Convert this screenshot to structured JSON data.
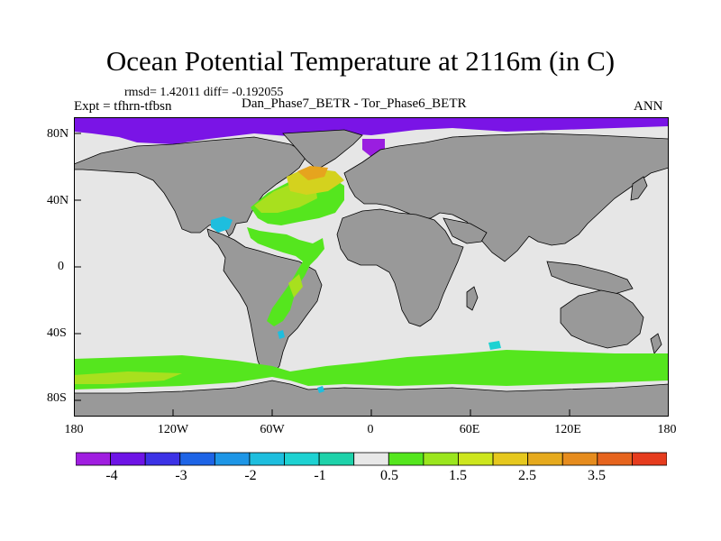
{
  "title": "Ocean Potential Temperature at 2116m (in C)",
  "stats": "rmsd= 1.42011 diff= -0.192055",
  "experiment": "Expt = tfhrn-tfbsn",
  "cases": "Dan_Phase7_BETR - Tor_Phase6_BETR",
  "season": "ANN",
  "lat_labels": [
    "80N",
    "40N",
    "0",
    "40S",
    "80S"
  ],
  "lon_labels": [
    "180",
    "120W",
    "60W",
    "0",
    "60E",
    "120E",
    "180"
  ],
  "colors": {
    "land": "#999999",
    "no_change": "#e6e6e6",
    "coast": "#000000"
  },
  "colorbar": {
    "colors": [
      "#a01ee0",
      "#6e14e6",
      "#3c32e6",
      "#1e64e6",
      "#1e96e6",
      "#1ebede",
      "#1ed2d2",
      "#1ed2aa",
      "#e8e8e8",
      "#55e61e",
      "#9be61e",
      "#cde61e",
      "#e6c81e",
      "#e6aa1e",
      "#e68c1e",
      "#e6641e",
      "#e63c1e"
    ],
    "labels": [
      "-4",
      "-3",
      "-2",
      "-1",
      "0.5",
      "1.5",
      "2.5",
      "3.5"
    ]
  }
}
